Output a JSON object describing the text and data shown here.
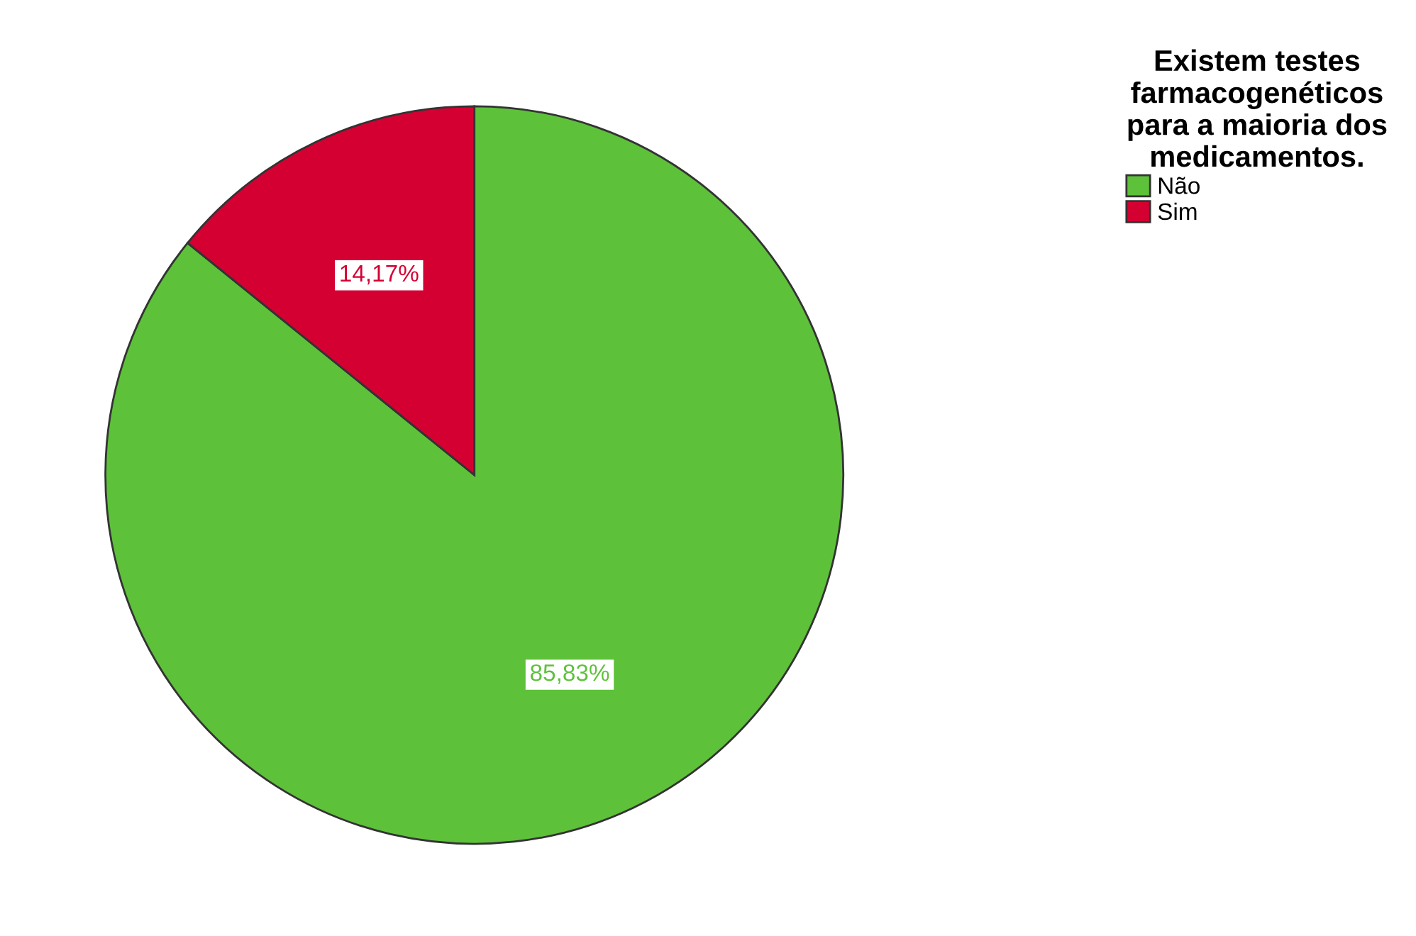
{
  "chart_data": {
    "type": "pie",
    "legend_title": "Existem testes\nfarmacogenéticos\npara a maioria dos\nmedicamentos.",
    "categories": [
      "Não",
      "Sim"
    ],
    "values": [
      85.83,
      14.17
    ],
    "colors": [
      "#5ec13a",
      "#d50032"
    ],
    "value_labels": [
      "85,83%",
      "14,17%"
    ],
    "legend": "top right"
  }
}
